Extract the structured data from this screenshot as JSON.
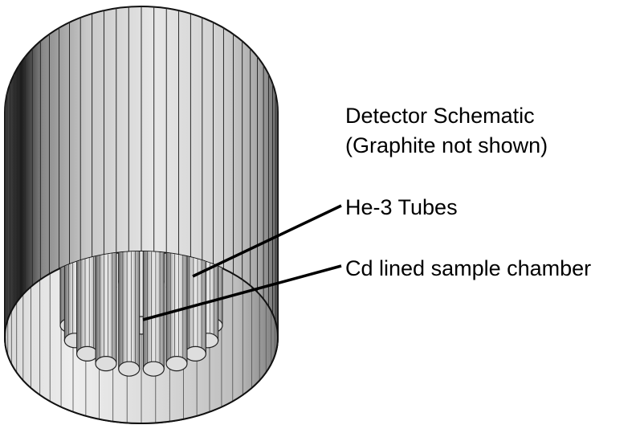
{
  "title": {
    "line1": "Detector Schematic",
    "line2": "(Graphite not shown)"
  },
  "labels": {
    "he3_tubes": "He-3 Tubes",
    "cd_chamber": "Cd lined sample chamber"
  },
  "colors": {
    "stroke": "#111111",
    "text": "#000000",
    "background": "#ffffff",
    "cylinder_light": "#e2e2e2",
    "cylinder_mid": "#b0b0b0",
    "cylinder_dark": "#3a3a3a",
    "tube_face": "#dedede"
  },
  "tube_ring_count": 18
}
